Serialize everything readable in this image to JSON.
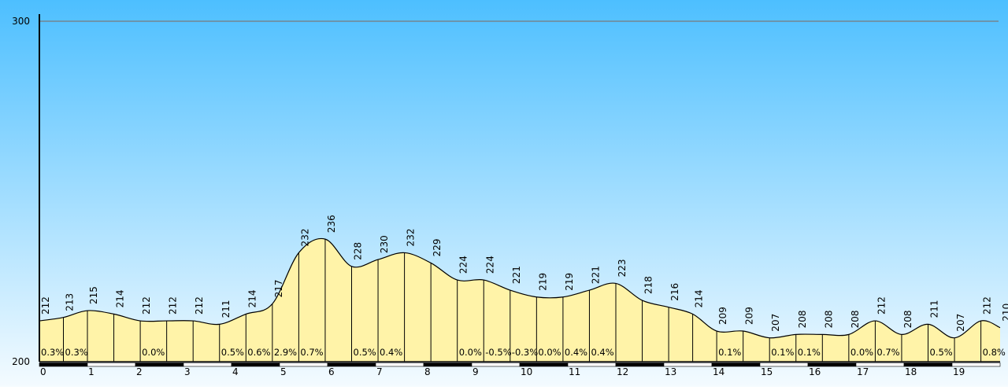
{
  "chart_data": {
    "type": "area",
    "title": "",
    "xlabel": "",
    "ylabel": "",
    "xlim": [
      0,
      20
    ],
    "ylim": [
      200,
      300
    ],
    "y_ticks": [
      200,
      300
    ],
    "x_ticks": [
      0,
      1,
      2,
      3,
      4,
      5,
      6,
      7,
      8,
      9,
      10,
      11,
      12,
      13,
      14,
      15,
      16,
      17,
      18,
      19
    ],
    "grid": false,
    "legend": "none",
    "colors": {
      "sky_top": "#4dbfff",
      "sky_bottom": "#f4fbff",
      "area_fill": "#fff3a8",
      "line": "#000000",
      "ref_line": "#7a7a7a"
    },
    "points": [
      {
        "x": 0.0,
        "elevation": 212
      },
      {
        "x": 0.5,
        "elevation": 213
      },
      {
        "x": 1.0,
        "elevation": 215
      },
      {
        "x": 1.55,
        "elevation": 214
      },
      {
        "x": 2.1,
        "elevation": 212
      },
      {
        "x": 2.65,
        "elevation": 212
      },
      {
        "x": 3.2,
        "elevation": 212
      },
      {
        "x": 3.75,
        "elevation": 211
      },
      {
        "x": 4.3,
        "elevation": 214
      },
      {
        "x": 4.85,
        "elevation": 217
      },
      {
        "x": 5.4,
        "elevation": 232
      },
      {
        "x": 5.95,
        "elevation": 236
      },
      {
        "x": 6.5,
        "elevation": 228
      },
      {
        "x": 7.05,
        "elevation": 230
      },
      {
        "x": 7.6,
        "elevation": 232
      },
      {
        "x": 8.15,
        "elevation": 229
      },
      {
        "x": 8.7,
        "elevation": 224
      },
      {
        "x": 9.25,
        "elevation": 224
      },
      {
        "x": 9.8,
        "elevation": 221
      },
      {
        "x": 10.35,
        "elevation": 219
      },
      {
        "x": 10.9,
        "elevation": 219
      },
      {
        "x": 11.45,
        "elevation": 221
      },
      {
        "x": 12.0,
        "elevation": 223
      },
      {
        "x": 12.55,
        "elevation": 218
      },
      {
        "x": 13.1,
        "elevation": 216
      },
      {
        "x": 13.6,
        "elevation": 214
      },
      {
        "x": 14.1,
        "elevation": 209
      },
      {
        "x": 14.65,
        "elevation": 209
      },
      {
        "x": 15.2,
        "elevation": 207
      },
      {
        "x": 15.75,
        "elevation": 208
      },
      {
        "x": 16.3,
        "elevation": 208
      },
      {
        "x": 16.85,
        "elevation": 208
      },
      {
        "x": 17.4,
        "elevation": 212
      },
      {
        "x": 17.95,
        "elevation": 208
      },
      {
        "x": 18.5,
        "elevation": 211
      },
      {
        "x": 19.05,
        "elevation": 207
      },
      {
        "x": 19.6,
        "elevation": 212
      },
      {
        "x": 20.0,
        "elevation": 210
      }
    ],
    "grade_labels": [
      {
        "x": 0.0,
        "text": "0.3%"
      },
      {
        "x": 0.5,
        "text": "0.3%"
      },
      {
        "x": 2.1,
        "text": "0.0%"
      },
      {
        "x": 3.75,
        "text": "0.5%"
      },
      {
        "x": 4.3,
        "text": "0.6%"
      },
      {
        "x": 4.85,
        "text": "2.9%"
      },
      {
        "x": 5.4,
        "text": "0.7%"
      },
      {
        "x": 6.5,
        "text": "0.5%"
      },
      {
        "x": 7.05,
        "text": "0.4%"
      },
      {
        "x": 8.7,
        "text": "0.0%"
      },
      {
        "x": 9.25,
        "text": "-0.5%"
      },
      {
        "x": 9.8,
        "text": "-0.3%"
      },
      {
        "x": 10.35,
        "text": "0.0%"
      },
      {
        "x": 10.9,
        "text": "0.4%"
      },
      {
        "x": 11.45,
        "text": "0.4%"
      },
      {
        "x": 14.1,
        "text": "0.1%"
      },
      {
        "x": 15.2,
        "text": "0.1%"
      },
      {
        "x": 15.75,
        "text": "0.1%"
      },
      {
        "x": 16.85,
        "text": "0.0%"
      },
      {
        "x": 17.4,
        "text": "0.7%"
      },
      {
        "x": 18.5,
        "text": "0.5%"
      },
      {
        "x": 19.6,
        "text": "0.8%"
      }
    ]
  }
}
